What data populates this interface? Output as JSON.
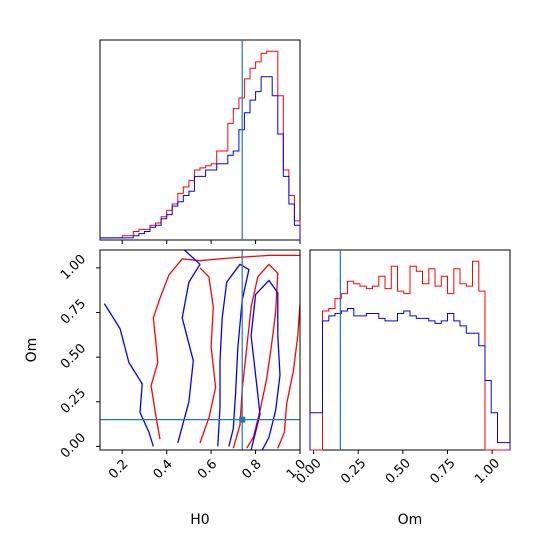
{
  "chart_data": {
    "type": "corner",
    "params": [
      "H0",
      "Om"
    ],
    "truths": {
      "H0": 0.74,
      "Om": 0.15
    },
    "colors": {
      "series_a": "#ff0000",
      "series_b": "#0000ff",
      "truth": "#1f77b4"
    },
    "H0_axis": {
      "label": "H0",
      "range": [
        0.1,
        1.0
      ],
      "ticks": [
        0.2,
        0.4,
        0.6,
        0.8,
        1.0
      ],
      "tick_labels": [
        "0.2",
        "0.4",
        "0.6",
        "0.8",
        "1.0"
      ]
    },
    "Om_axis": {
      "label": "Om",
      "range": [
        -0.02,
        1.1
      ],
      "ticks": [
        0.0,
        0.25,
        0.5,
        0.75,
        1.0
      ],
      "tick_labels": [
        "0.00",
        "0.25",
        "0.50",
        "0.75",
        "1.00"
      ]
    },
    "hist_H0": {
      "bin_edges": [
        0.1,
        0.125,
        0.15,
        0.175,
        0.2,
        0.225,
        0.25,
        0.275,
        0.3,
        0.325,
        0.35,
        0.375,
        0.4,
        0.425,
        0.45,
        0.475,
        0.5,
        0.525,
        0.55,
        0.575,
        0.6,
        0.625,
        0.65,
        0.675,
        0.7,
        0.725,
        0.75,
        0.775,
        0.8,
        0.825,
        0.85,
        0.875,
        0.9,
        0.925,
        0.95,
        0.975,
        1.0
      ],
      "series": [
        {
          "values": [
            1,
            1,
            1,
            1,
            2,
            2,
            4,
            5,
            5,
            7,
            8,
            11,
            14,
            17,
            22,
            25,
            28,
            33,
            34,
            35,
            36,
            42,
            42,
            55,
            62,
            67,
            76,
            81,
            84,
            88,
            89,
            89,
            68,
            33,
            21,
            9
          ]
        },
        {
          "values": [
            1,
            1,
            1,
            1,
            1,
            1,
            2,
            3,
            4,
            6,
            7,
            10,
            12,
            16,
            18,
            21,
            23,
            30,
            30,
            33,
            33,
            36,
            36,
            40,
            42,
            52,
            60,
            66,
            70,
            77,
            77,
            68,
            50,
            30,
            17,
            7
          ]
        }
      ]
    },
    "hist_Om": {
      "bin_edges": [
        -0.02,
        0.015,
        0.05,
        0.085,
        0.12,
        0.155,
        0.19,
        0.225,
        0.26,
        0.295,
        0.33,
        0.365,
        0.4,
        0.435,
        0.47,
        0.505,
        0.54,
        0.575,
        0.61,
        0.645,
        0.68,
        0.715,
        0.75,
        0.785,
        0.82,
        0.855,
        0.89,
        0.925,
        0.96,
        0.995,
        1.03,
        1.065,
        1.1
      ],
      "series": [
        {
          "values": [
            0,
            0,
            56,
            57,
            61,
            63,
            68,
            67,
            66,
            65,
            66,
            70,
            65,
            74,
            64,
            63,
            74,
            72,
            67,
            73,
            66,
            70,
            63,
            73,
            67,
            66,
            76,
            64,
            0,
            0,
            0,
            0
          ]
        },
        {
          "values": [
            15,
            15,
            52,
            54,
            55,
            56,
            57,
            54,
            54,
            55,
            55,
            53,
            52,
            52,
            55,
            56,
            54,
            53,
            53,
            52,
            51,
            52,
            55,
            52,
            50,
            47,
            47,
            42,
            28,
            15,
            3,
            3
          ]
        }
      ]
    },
    "contours_2d": [
      {
        "series": 0,
        "level": "outer",
        "points": [
          [
            0.37,
            0.04
          ],
          [
            0.35,
            0.18
          ],
          [
            0.33,
            0.34
          ],
          [
            0.36,
            0.47
          ],
          [
            0.35,
            0.6
          ],
          [
            0.34,
            0.72
          ],
          [
            0.37,
            0.83
          ],
          [
            0.41,
            0.96
          ],
          [
            0.47,
            1.05
          ],
          [
            0.55,
            1.04
          ],
          [
            0.64,
            1.05
          ],
          [
            0.74,
            1.06
          ],
          [
            0.86,
            1.07
          ],
          [
            1.0,
            1.07
          ]
        ]
      },
      {
        "series": 0,
        "level": "outer",
        "points": [
          [
            1.0,
            0.8
          ],
          [
            0.99,
            0.62
          ],
          [
            0.97,
            0.42
          ],
          [
            0.94,
            0.24
          ],
          [
            0.93,
            0.08
          ],
          [
            0.9,
            -0.01
          ]
        ]
      },
      {
        "series": 0,
        "level": "inner",
        "points": [
          [
            0.55,
            1.0
          ],
          [
            0.59,
            0.95
          ],
          [
            0.61,
            0.78
          ],
          [
            0.6,
            0.56
          ],
          [
            0.62,
            0.33
          ],
          [
            0.59,
            0.16
          ],
          [
            0.55,
            0.02
          ]
        ]
      },
      {
        "series": 0,
        "level": "inner",
        "points": [
          [
            0.7,
            -0.01
          ],
          [
            0.73,
            0.12
          ],
          [
            0.74,
            0.32
          ],
          [
            0.76,
            0.55
          ],
          [
            0.78,
            0.78
          ],
          [
            0.81,
            0.95
          ],
          [
            0.86,
            1.02
          ],
          [
            0.9,
            0.97
          ],
          [
            0.89,
            0.75
          ],
          [
            0.87,
            0.55
          ],
          [
            0.85,
            0.38
          ],
          [
            0.82,
            0.2
          ],
          [
            0.79,
            0.05
          ],
          [
            0.76,
            -0.01
          ]
        ]
      },
      {
        "series": 1,
        "level": "outer",
        "points": [
          [
            0.12,
            0.8
          ],
          [
            0.19,
            0.66
          ],
          [
            0.23,
            0.47
          ],
          [
            0.29,
            0.35
          ],
          [
            0.28,
            0.19
          ],
          [
            0.32,
            0.08
          ],
          [
            0.34,
            0.0
          ]
        ]
      },
      {
        "series": 1,
        "level": "outer",
        "points": [
          [
            0.45,
            0.02
          ],
          [
            0.5,
            0.25
          ],
          [
            0.52,
            0.48
          ],
          [
            0.47,
            0.72
          ],
          [
            0.5,
            0.92
          ],
          [
            0.55,
            1.02
          ],
          [
            0.48,
            1.1
          ]
        ]
      },
      {
        "series": 1,
        "level": "inner",
        "points": [
          [
            0.63,
            0.0
          ],
          [
            0.64,
            0.22
          ],
          [
            0.64,
            0.48
          ],
          [
            0.65,
            0.72
          ],
          [
            0.67,
            0.92
          ],
          [
            0.73,
            1.02
          ],
          [
            0.77,
            0.99
          ],
          [
            0.74,
            0.82
          ],
          [
            0.72,
            0.55
          ],
          [
            0.71,
            0.3
          ],
          [
            0.7,
            0.1
          ],
          [
            0.68,
            0.0
          ]
        ]
      },
      {
        "series": 1,
        "level": "inner",
        "points": [
          [
            0.78,
            -0.02
          ],
          [
            0.82,
            0.18
          ],
          [
            0.8,
            0.4
          ],
          [
            0.78,
            0.62
          ],
          [
            0.8,
            0.85
          ],
          [
            0.86,
            0.93
          ],
          [
            0.9,
            0.86
          ],
          [
            0.9,
            0.62
          ],
          [
            0.91,
            0.4
          ],
          [
            0.89,
            0.2
          ],
          [
            0.86,
            0.05
          ],
          [
            0.83,
            -0.02
          ]
        ]
      }
    ]
  }
}
